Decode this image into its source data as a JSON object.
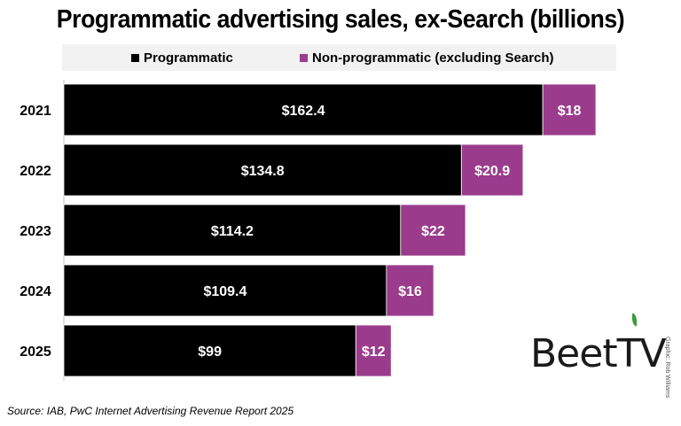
{
  "title": "Programmatic advertising sales, ex-Search (billions)",
  "legend": [
    {
      "label": "Programmatic",
      "color": "#000000"
    },
    {
      "label": "Non-programmatic (excluding Search)",
      "color": "#9b3b8c"
    }
  ],
  "chart_data": {
    "type": "bar",
    "orientation": "horizontal",
    "stacked": true,
    "title": "Programmatic advertising sales, ex-Search (billions)",
    "categories": [
      "2021",
      "2022",
      "2023",
      "2024",
      "2025"
    ],
    "series": [
      {
        "name": "Programmatic",
        "color": "#000000",
        "values": [
          162.4,
          134.8,
          114.2,
          109.4,
          99
        ],
        "labels": [
          "$162.4",
          "$134.8",
          "$114.2",
          "$109.4",
          "$99"
        ]
      },
      {
        "name": "Non-programmatic (excluding Search)",
        "color": "#9b3b8c",
        "values": [
          18,
          20.9,
          22,
          16,
          12
        ],
        "labels": [
          "$18",
          "$20.9",
          "$22",
          "$16",
          "$12"
        ]
      }
    ],
    "xlim": [
      0,
      180.4
    ],
    "grid": false,
    "legend_position": "top"
  },
  "source": "Source: IAB, PwC Internet Advertising Revenue Report 2025",
  "credit": "Graphic: Rob Williams",
  "logo": {
    "text_left": "Beet",
    "text_right": "TV",
    "icon": "beet-leaf-icon"
  }
}
